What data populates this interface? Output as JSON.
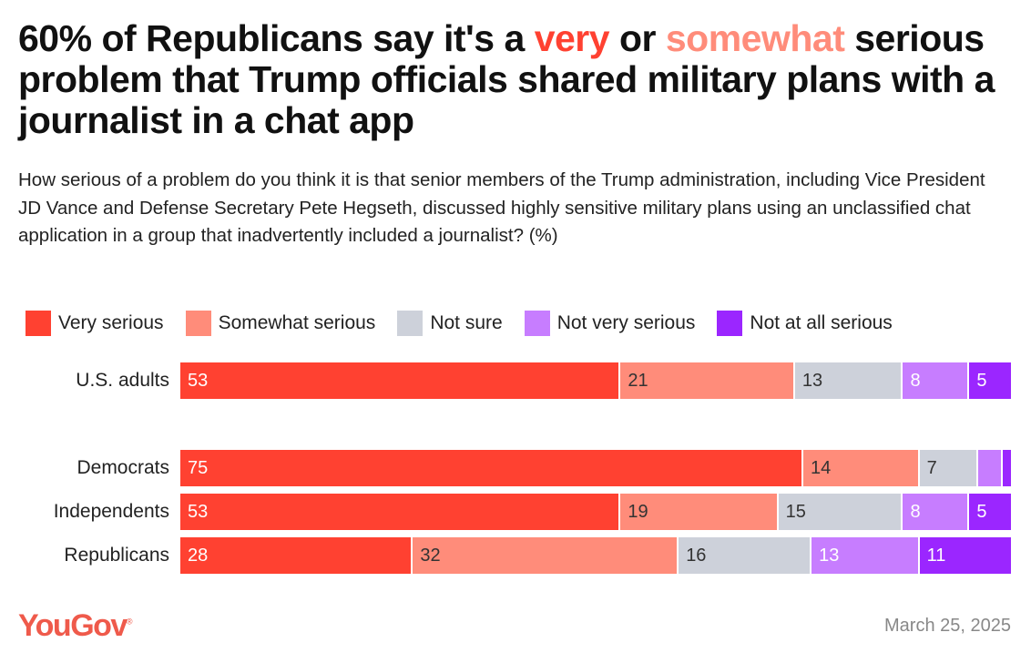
{
  "chart_data": {
    "type": "bar",
    "orientation": "horizontal-stacked-100",
    "title_parts": [
      "60% of Republicans say it's a ",
      "very",
      " or ",
      "somewhat",
      " serious problem that Trump officials shared military plans with a journalist in a chat app"
    ],
    "subtitle": "How serious of a problem do you think it is that senior members of the Trump administration, including Vice President JD Vance and Defense Secretary Pete Hegseth, discussed highly sensitive military plans using an unclassified chat application in a group that inadvertently included a journalist? (%)",
    "categories": [
      "U.S. adults",
      "Democrats",
      "Independents",
      "Republicans"
    ],
    "series": [
      {
        "name": "Very serious",
        "color": "#ff4131",
        "label_color": "#ffffff",
        "values": [
          53,
          75,
          53,
          28
        ]
      },
      {
        "name": "Somewhat serious",
        "color": "#ff8c7a",
        "label_color": "#333333",
        "values": [
          21,
          14,
          19,
          32
        ]
      },
      {
        "name": "Not sure",
        "color": "#cdd1da",
        "label_color": "#333333",
        "values": [
          13,
          7,
          15,
          16
        ]
      },
      {
        "name": "Not very serious",
        "color": "#c77dff",
        "label_color": "#ffffff",
        "values": [
          8,
          3,
          8,
          13
        ]
      },
      {
        "name": "Not at all serious",
        "color": "#9b26ff",
        "label_color": "#ffffff",
        "values": [
          5,
          1,
          5,
          11
        ]
      }
    ],
    "labels_hidden_below": 4,
    "xlim": [
      0,
      100
    ],
    "legend_position": "top"
  },
  "footer": {
    "brand": "YouGov",
    "registered": "®",
    "date": "March 25, 2025"
  }
}
